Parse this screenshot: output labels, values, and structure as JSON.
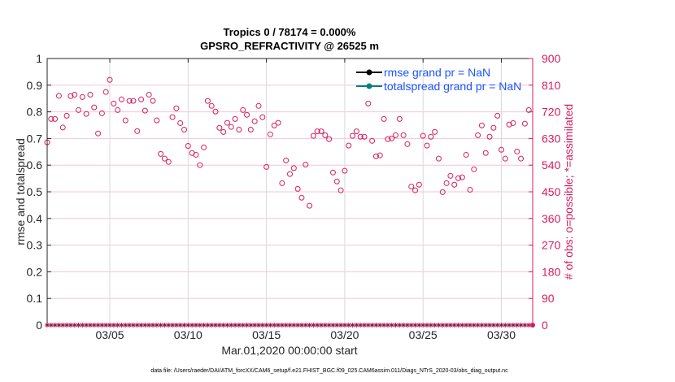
{
  "chart_data": {
    "type": "scatter",
    "title": [
      "Tropics 0 / 78174 = 0.000%",
      "GPSRO_REFRACTIVITY @ 26525 m"
    ],
    "xlabel": "Mar.01,2020 00:00:00 start",
    "ylabel_left": "rmse and totalspread",
    "ylabel_right": "# of obs: o=possible; *=assimilated",
    "x_units": "days since Mar.01,2020 00:00:00",
    "xlim": [
      0,
      31
    ],
    "x_tick_values": [
      4,
      9,
      14,
      19,
      24,
      29
    ],
    "x_tick_labels": [
      "03/05",
      "03/10",
      "03/15",
      "03/20",
      "03/25",
      "03/30"
    ],
    "ylim_left": [
      0,
      1
    ],
    "y_left_ticks": [
      "0",
      "0.1",
      "0.2",
      "0.3",
      "0.4",
      "0.5",
      "0.6",
      "0.7",
      "0.8",
      "0.9",
      "1"
    ],
    "ylim_right": [
      0,
      900
    ],
    "y_right_ticks": [
      "0",
      "90",
      "180",
      "270",
      "360",
      "450",
      "540",
      "630",
      "720",
      "810",
      "900"
    ],
    "grid": true,
    "legend_placement": "top-right",
    "legend": [
      {
        "label": "rmse grand pr = NaN",
        "color": "#000000"
      },
      {
        "label": "totalspread grand pr = NaN",
        "color": "#008080"
      }
    ],
    "colors": {
      "obs": "#d81b60",
      "legend_text": "#1a55ff",
      "vgrid": "#d9d9d9",
      "hgrid": "#f3c6d6"
    },
    "obs_time_step_days": 0.25,
    "obs_possible": [
      617,
      696,
      696,
      774,
      667,
      707,
      773,
      778,
      726,
      770,
      713,
      778,
      735,
      647,
      715,
      787,
      828,
      748,
      726,
      762,
      691,
      757,
      757,
      655,
      762,
      724,
      778,
      757,
      691,
      578,
      562,
      551,
      702,
      732,
      682,
      660,
      605,
      581,
      575,
      540,
      600,
      757,
      740,
      721,
      666,
      652,
      683,
      669,
      696,
      660,
      726,
      710,
      660,
      688,
      740,
      702,
      534,
      644,
      674,
      683,
      479,
      556,
      510,
      530,
      460,
      430,
      542,
      403,
      639,
      654,
      654,
      641,
      628,
      515,
      485,
      455,
      521,
      606,
      639,
      654,
      636,
      636,
      748,
      622,
      570,
      573,
      696,
      628,
      630,
      641,
      696,
      641,
      611,
      468,
      455,
      474,
      639,
      606,
      636,
      652,
      562,
      449,
      479,
      504,
      474,
      496,
      499,
      575,
      457,
      526,
      641,
      674,
      581,
      636,
      666,
      707,
      592,
      562,
      677,
      682,
      586,
      562,
      680,
      726
    ],
    "obs_assimilated_value": 0,
    "rmse": "NaN",
    "totalspread": "NaN"
  },
  "footer": {
    "data_file": "data file: /Users/raeder/DAI/ATM_forcXX/CAM6_setup/f.e21.FHIST_BGC.f09_025.CAM6assim.011/Diags_NTrS_2020-03/obs_diag_output.nc"
  }
}
